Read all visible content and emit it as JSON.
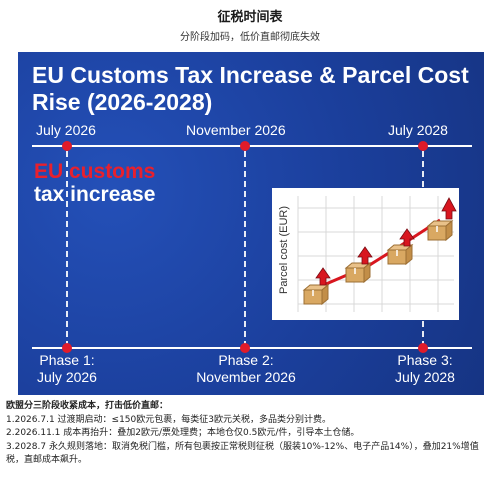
{
  "header": {
    "title": "征税时间表",
    "subtitle": "分阶段加码，低价直邮彻底失效"
  },
  "poster": {
    "title": "EU Customs Tax Increase & Parcel Cost Rise (2026-2028)",
    "timeline_top": [
      "July 2026",
      "November 2026",
      "July 2028"
    ],
    "headline_red": "EU customs",
    "headline_white": "tax increase",
    "chart_ylabel": "Parcel cost (EUR)",
    "phases": [
      {
        "line1": "Phase 1:",
        "line2": "July 2026"
      },
      {
        "line1": "Phase 2:",
        "line2": "November 2026"
      },
      {
        "line1": "Phase 3:",
        "line2": "July 2028"
      }
    ],
    "colors": {
      "background": "#1b3f9c",
      "accent_red": "#e01b2a",
      "trend_line": "#d8161f"
    },
    "icons": [
      "parcel-box-icon",
      "up-arrow-icon"
    ]
  },
  "notes": {
    "intro": "欧盟分三阶段收紧成本，打击低价直邮：",
    "items": [
      "1.2026.7.1 过渡期启动：≤150欧元包裹，每类征3欧元关税，多品类分别计费。",
      "2.2026.11.1 成本再抬升：叠加2欧元/票处理费；本地仓仅0.5欧元/件，引导本土仓储。",
      "3.2028.7 永久规则落地：取消免税门槛，所有包裹按正常税则征税（服装10%-12%、电子产品14%），叠加21%增值税，直邮成本飙升。"
    ]
  }
}
